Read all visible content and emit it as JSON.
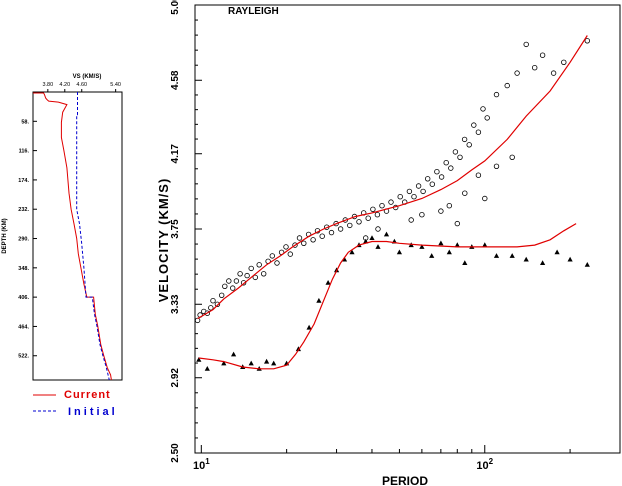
{
  "chart_data": [
    {
      "type": "line",
      "xlabel_top": "VS (KM/S)",
      "ylabel": "DEPTH (KM)",
      "x_ticks": [
        3.8,
        4.2,
        4.6,
        5.4
      ],
      "x_tick_labels": [
        "3.80",
        "4.20",
        "4.60",
        "5.40"
      ],
      "xlim": [
        3.45,
        5.55
      ],
      "y_ticks": [
        58,
        116,
        174,
        232,
        290,
        348,
        406,
        464,
        522
      ],
      "y_tick_labels": [
        "58.",
        "116.",
        "174.",
        "232.",
        "290.",
        "348.",
        "406.",
        "464.",
        "522."
      ],
      "ylim": [
        0,
        570
      ],
      "legend": [
        {
          "name": "Current",
          "color": "#e00000",
          "dash": "solid"
        },
        {
          "name": "Initial",
          "color": "#0000d0",
          "dash": "dashed"
        }
      ],
      "series": [
        {
          "name": "Current",
          "color": "#e00000",
          "points": [
            [
              3.45,
              2
            ],
            [
              3.7,
              2
            ],
            [
              3.72,
              5
            ],
            [
              3.75,
              12
            ],
            [
              3.78,
              15
            ],
            [
              3.82,
              18
            ],
            [
              4.05,
              20
            ],
            [
              4.25,
              25
            ],
            [
              4.15,
              40
            ],
            [
              4.12,
              60
            ],
            [
              4.12,
              90
            ],
            [
              4.18,
              116
            ],
            [
              4.25,
              150
            ],
            [
              4.3,
              200
            ],
            [
              4.35,
              232
            ],
            [
              4.42,
              262
            ],
            [
              4.48,
              290
            ],
            [
              4.52,
              320
            ],
            [
              4.58,
              348
            ],
            [
              4.65,
              380
            ],
            [
              4.72,
              406
            ],
            [
              4.88,
              406
            ],
            [
              4.92,
              440
            ],
            [
              4.98,
              464
            ],
            [
              5.05,
              500
            ],
            [
              5.12,
              522
            ],
            [
              5.2,
              545
            ],
            [
              5.28,
              560
            ],
            [
              5.3,
              570
            ]
          ]
        },
        {
          "name": "Initial",
          "color": "#0000d0",
          "points": [
            [
              4.5,
              0
            ],
            [
              4.5,
              45
            ],
            [
              4.48,
              45
            ],
            [
              4.48,
              232
            ],
            [
              4.55,
              262
            ],
            [
              4.6,
              300
            ],
            [
              4.65,
              348
            ],
            [
              4.7,
              406
            ],
            [
              4.85,
              406
            ],
            [
              4.9,
              440
            ],
            [
              4.96,
              464
            ],
            [
              5.03,
              500
            ],
            [
              5.1,
              522
            ],
            [
              5.18,
              545
            ],
            [
              5.25,
              570
            ]
          ]
        }
      ]
    },
    {
      "type": "scatter",
      "title": "RAYLEIGH",
      "xlabel": "PERIOD",
      "ylabel": "VELOCITY (KM/S)",
      "x_scale": "log",
      "xlim": [
        9.5,
        300
      ],
      "ylim": [
        2.5,
        5.0
      ],
      "x_tick_labels": [
        {
          "base": "10",
          "exp": "1",
          "value": 10
        },
        {
          "base": "10",
          "exp": "2",
          "value": 100
        }
      ],
      "y_ticks": [
        2.5,
        2.92,
        3.33,
        3.75,
        4.17,
        4.58,
        5.0
      ],
      "y_tick_labels": [
        "2.50",
        "2.92",
        "3.33",
        "3.75",
        "4.17",
        "4.58",
        "5.00"
      ],
      "series": [
        {
          "name": "",
          "marker": "circle",
          "values": [
            [
              9.7,
              3.24
            ],
            [
              9.9,
              3.27
            ],
            [
              10.2,
              3.29
            ],
            [
              10.5,
              3.28
            ],
            [
              10.8,
              3.31
            ],
            [
              11,
              3.35
            ],
            [
              11.4,
              3.33
            ],
            [
              11.8,
              3.38
            ],
            [
              12.1,
              3.43
            ],
            [
              12.5,
              3.46
            ],
            [
              12.9,
              3.42
            ],
            [
              13.3,
              3.46
            ],
            [
              13.7,
              3.5
            ],
            [
              14.1,
              3.45
            ],
            [
              14.5,
              3.49
            ],
            [
              15,
              3.53
            ],
            [
              15.5,
              3.48
            ],
            [
              16,
              3.55
            ],
            [
              16.6,
              3.5
            ],
            [
              17.2,
              3.57
            ],
            [
              17.8,
              3.6
            ],
            [
              18.5,
              3.56
            ],
            [
              19.2,
              3.62
            ],
            [
              19.9,
              3.65
            ],
            [
              20.6,
              3.61
            ],
            [
              21.4,
              3.66
            ],
            [
              22.2,
              3.7
            ],
            [
              23,
              3.67
            ],
            [
              23.9,
              3.72
            ],
            [
              24.8,
              3.69
            ],
            [
              25.7,
              3.74
            ],
            [
              26.7,
              3.71
            ],
            [
              27.7,
              3.76
            ],
            [
              28.8,
              3.73
            ],
            [
              29.9,
              3.78
            ],
            [
              31,
              3.75
            ],
            [
              32.2,
              3.8
            ],
            [
              33.4,
              3.77
            ],
            [
              34.7,
              3.82
            ],
            [
              36,
              3.79
            ],
            [
              37.4,
              3.84
            ],
            [
              38.8,
              3.81
            ],
            [
              40.3,
              3.86
            ],
            [
              41.8,
              3.83
            ],
            [
              43.4,
              3.88
            ],
            [
              45,
              3.85
            ],
            [
              46.7,
              3.9
            ],
            [
              48.5,
              3.87
            ],
            [
              50.3,
              3.93
            ],
            [
              52.2,
              3.9
            ],
            [
              54.2,
              3.96
            ],
            [
              56.3,
              3.93
            ],
            [
              58.4,
              3.99
            ],
            [
              60.6,
              3.96
            ],
            [
              62.9,
              4.03
            ],
            [
              65.3,
              4.0
            ],
            [
              67.8,
              4.07
            ],
            [
              70.4,
              4.04
            ],
            [
              73.1,
              4.12
            ],
            [
              75.9,
              4.09
            ],
            [
              78.8,
              4.18
            ],
            [
              81.8,
              4.15
            ],
            [
              84.9,
              4.25
            ],
            [
              88.1,
              4.22
            ],
            [
              91.5,
              4.33
            ],
            [
              95,
              4.29
            ],
            [
              98.6,
              4.42
            ],
            [
              102,
              4.37
            ],
            [
              110,
              4.5
            ],
            [
              120,
              4.55
            ],
            [
              130,
              4.62
            ],
            [
              140,
              4.78
            ],
            [
              150,
              4.65
            ],
            [
              160,
              4.72
            ],
            [
              175,
              4.62
            ],
            [
              190,
              4.68
            ],
            [
              230,
              4.8
            ],
            [
              60,
              3.83
            ],
            [
              55,
              3.8
            ],
            [
              70,
              3.85
            ],
            [
              38,
              3.7
            ],
            [
              42,
              3.75
            ],
            [
              75,
              3.88
            ],
            [
              85,
              3.95
            ],
            [
              95,
              4.05
            ],
            [
              110,
              4.1
            ],
            [
              125,
              4.15
            ],
            [
              80,
              3.78
            ],
            [
              100,
              3.92
            ]
          ]
        },
        {
          "name": "",
          "marker": "triangle",
          "values": [
            [
              9.8,
              3.02
            ],
            [
              10.5,
              2.97
            ],
            [
              12,
              3.0
            ],
            [
              13,
              3.05
            ],
            [
              14,
              2.98
            ],
            [
              15,
              3.0
            ],
            [
              16,
              2.97
            ],
            [
              17,
              3.01
            ],
            [
              18,
              3.0
            ],
            [
              20,
              3.0
            ],
            [
              22,
              3.08
            ],
            [
              24,
              3.2
            ],
            [
              26,
              3.35
            ],
            [
              28,
              3.45
            ],
            [
              30,
              3.52
            ],
            [
              32,
              3.58
            ],
            [
              34,
              3.62
            ],
            [
              36,
              3.66
            ],
            [
              38,
              3.68
            ],
            [
              40,
              3.7
            ],
            [
              42,
              3.65
            ],
            [
              45,
              3.72
            ],
            [
              48,
              3.68
            ],
            [
              50,
              3.62
            ],
            [
              55,
              3.66
            ],
            [
              60,
              3.65
            ],
            [
              65,
              3.6
            ],
            [
              70,
              3.67
            ],
            [
              75,
              3.62
            ],
            [
              80,
              3.66
            ],
            [
              85,
              3.56
            ],
            [
              90,
              3.65
            ],
            [
              100,
              3.66
            ],
            [
              110,
              3.6
            ],
            [
              125,
              3.6
            ],
            [
              140,
              3.58
            ],
            [
              160,
              3.56
            ],
            [
              180,
              3.62
            ],
            [
              200,
              3.58
            ],
            [
              230,
              3.55
            ]
          ]
        },
        {
          "name": "",
          "line": "fit_upper",
          "color": "#e00000",
          "values": [
            [
              9.7,
              3.25
            ],
            [
              11,
              3.3
            ],
            [
              12,
              3.36
            ],
            [
              13.5,
              3.42
            ],
            [
              15,
              3.48
            ],
            [
              17,
              3.55
            ],
            [
              19,
              3.6
            ],
            [
              21,
              3.65
            ],
            [
              24,
              3.71
            ],
            [
              27,
              3.75
            ],
            [
              30,
              3.78
            ],
            [
              35,
              3.82
            ],
            [
              40,
              3.84
            ],
            [
              50,
              3.88
            ],
            [
              60,
              3.92
            ],
            [
              70,
              3.97
            ],
            [
              80,
              4.02
            ],
            [
              90,
              4.08
            ],
            [
              100,
              4.13
            ],
            [
              120,
              4.25
            ],
            [
              140,
              4.38
            ],
            [
              170,
              4.52
            ],
            [
              200,
              4.68
            ],
            [
              230,
              4.83
            ]
          ]
        },
        {
          "name": "",
          "line": "fit_lower",
          "color": "#e00000",
          "values": [
            [
              9.8,
              3.03
            ],
            [
              11,
              3.02
            ],
            [
              12,
              3.01
            ],
            [
              14,
              2.98
            ],
            [
              16,
              2.97
            ],
            [
              18,
              2.97
            ],
            [
              20,
              2.99
            ],
            [
              21.5,
              3.05
            ],
            [
              23,
              3.12
            ],
            [
              25,
              3.22
            ],
            [
              27,
              3.35
            ],
            [
              29,
              3.47
            ],
            [
              31,
              3.56
            ],
            [
              33,
              3.62
            ],
            [
              36,
              3.66
            ],
            [
              40,
              3.68
            ],
            [
              45,
              3.68
            ],
            [
              50,
              3.67
            ],
            [
              60,
              3.66
            ],
            [
              80,
              3.65
            ],
            [
              100,
              3.65
            ],
            [
              130,
              3.65
            ],
            [
              150,
              3.66
            ],
            [
              170,
              3.69
            ],
            [
              190,
              3.74
            ],
            [
              210,
              3.78
            ]
          ]
        }
      ]
    }
  ]
}
